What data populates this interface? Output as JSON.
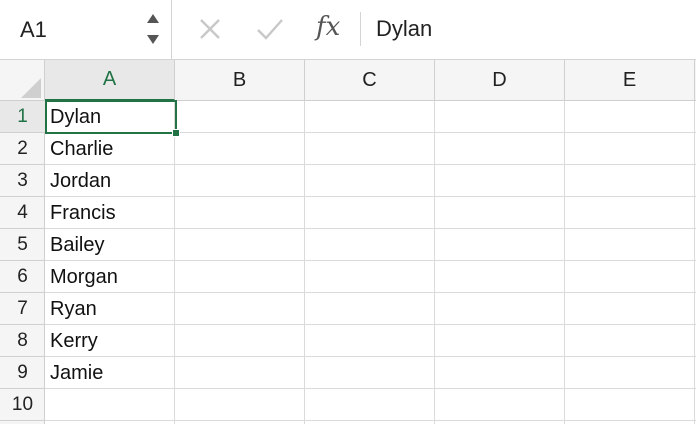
{
  "name_box": {
    "value": "A1"
  },
  "formula_bar": {
    "cancel_icon": "x-icon",
    "enter_icon": "checkmark-icon",
    "fx_label": "fx",
    "value": "Dylan"
  },
  "columns": [
    "A",
    "B",
    "C",
    "D",
    "E"
  ],
  "rows": [
    "1",
    "2",
    "3",
    "4",
    "5",
    "6",
    "7",
    "8",
    "9",
    "10"
  ],
  "cells_col_a": [
    "Dylan",
    "Charlie",
    "Jordan",
    "Francis",
    "Bailey",
    "Morgan",
    "Ryan",
    "Kerry",
    "Jamie",
    ""
  ],
  "selected_cell": "A1",
  "colors": {
    "accent": "#217346",
    "header_bg": "#f5f5f5",
    "gridline": "#dadada"
  }
}
